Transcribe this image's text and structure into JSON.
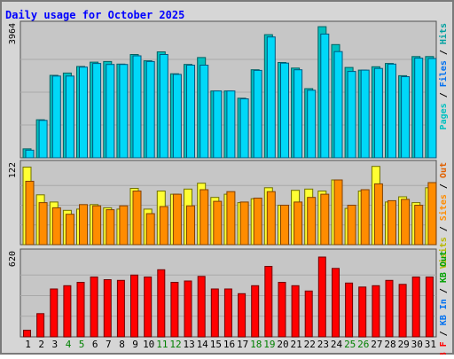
{
  "chart_data": [
    {
      "type": "bar",
      "title": "Daily usage for October 2025",
      "categories": [
        "1",
        "2",
        "3",
        "4",
        "5",
        "6",
        "7",
        "8",
        "9",
        "10",
        "11",
        "12",
        "13",
        "14",
        "15",
        "16",
        "17",
        "18",
        "19",
        "20",
        "21",
        "22",
        "23",
        "24",
        "25",
        "26",
        "27",
        "28",
        "29",
        "30",
        "31"
      ],
      "weekend_days": [
        "4",
        "5",
        "11",
        "12",
        "18",
        "19",
        "25",
        "26"
      ],
      "ylabel_top_value": "3964",
      "ylim": [
        0,
        3964
      ],
      "legend": [
        "Pages",
        "Files",
        "Hits"
      ],
      "series": [
        {
          "name": "Hits",
          "values": [
            270,
            1150,
            2490,
            2560,
            2760,
            2890,
            2910,
            2830,
            3120,
            2930,
            3200,
            2540,
            2820,
            3030,
            2020,
            2020,
            1800,
            2660,
            3720,
            2880,
            2710,
            2090,
            3960,
            3420,
            2730,
            2650,
            2750,
            2850,
            2480,
            3060,
            3060
          ]
        },
        {
          "name": "Files",
          "values": [
            230,
            1130,
            2470,
            2470,
            2740,
            2850,
            2820,
            2820,
            3080,
            2910,
            3120,
            2520,
            2800,
            2800,
            2020,
            2020,
            1780,
            2640,
            3650,
            2860,
            2660,
            2040,
            3740,
            3210,
            2610,
            2650,
            2700,
            2830,
            2450,
            3010,
            3000
          ]
        }
      ]
    },
    {
      "type": "bar",
      "ylabel_top_value": "122",
      "ylim": [
        0,
        122
      ],
      "legend": [
        "Visits",
        "Sites",
        "Out"
      ],
      "series": [
        {
          "name": "Visits",
          "values": [
            120,
            77,
            66,
            53,
            55,
            62,
            57,
            55,
            87,
            55,
            83,
            78,
            86,
            95,
            73,
            78,
            65,
            71,
            88,
            61,
            84,
            86,
            83,
            100,
            56,
            83,
            121,
            66,
            74,
            65,
            88
          ]
        },
        {
          "name": "Sites",
          "values": [
            98,
            65,
            57,
            47,
            62,
            60,
            54,
            60,
            83,
            48,
            59,
            78,
            60,
            85,
            67,
            82,
            66,
            72,
            82,
            61,
            66,
            73,
            78,
            100,
            61,
            85,
            94,
            68,
            70,
            61,
            96
          ]
        }
      ]
    },
    {
      "type": "bar",
      "ylabel_top_value": "620",
      "ylim": [
        0,
        620
      ],
      "legend": [
        "KB F",
        "KB In",
        "KB Out"
      ],
      "series": [
        {
          "name": "KB F",
          "values": [
            50,
            175,
            360,
            385,
            410,
            450,
            430,
            425,
            465,
            450,
            505,
            410,
            420,
            455,
            360,
            360,
            325,
            385,
            530,
            410,
            385,
            345,
            600,
            515,
            405,
            375,
            385,
            425,
            395,
            450,
            450
          ]
        }
      ]
    }
  ]
}
